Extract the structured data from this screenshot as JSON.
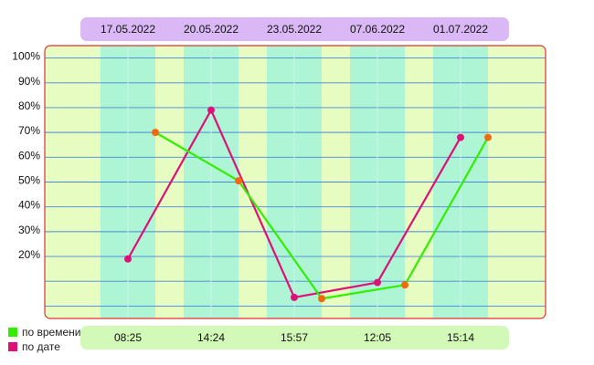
{
  "chart_data": {
    "type": "line",
    "dates": [
      "17.05.2022",
      "20.05.2022",
      "23.05.2022",
      "07.06.2022",
      "01.07.2022"
    ],
    "times": [
      "08:25",
      "14:24",
      "15:57",
      "12:05",
      "15:14"
    ],
    "y_ticks": [
      "20%",
      "30%",
      "40%",
      "50%",
      "60%",
      "70%",
      "80%",
      "90%",
      "100%"
    ],
    "ylim": [
      -5,
      105
    ],
    "grid": true,
    "legend_position": "bottom-left",
    "series": [
      {
        "name": "по времени",
        "color": "#33ee00",
        "points": [
          {
            "x": 1.33,
            "y": 70
          },
          {
            "x": 2.33,
            "y": 50.5
          },
          {
            "x": 3.33,
            "y": 3
          },
          {
            "x": 4.33,
            "y": 8.5
          },
          {
            "x": 5.33,
            "y": 68
          }
        ]
      },
      {
        "name": "по дате",
        "color": "#dd1177",
        "points": [
          {
            "x": 1,
            "y": 19
          },
          {
            "x": 2,
            "y": 79
          },
          {
            "x": 3,
            "y": 3.5
          },
          {
            "x": 4,
            "y": 9.5
          },
          {
            "x": 5,
            "y": 68
          }
        ]
      }
    ]
  }
}
